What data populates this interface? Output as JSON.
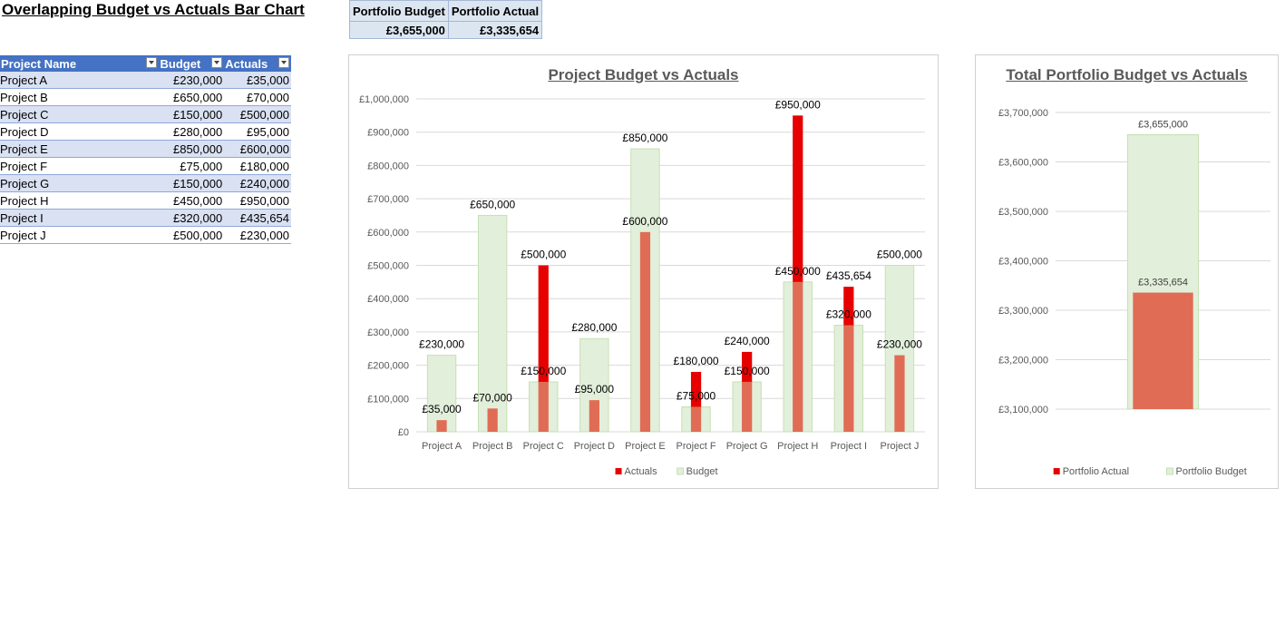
{
  "page_title": "Overlapping Budget vs Actuals Bar Chart",
  "summary": {
    "headers": [
      "Portfolio Budget",
      "Portfolio Actual"
    ],
    "values": [
      "£3,655,000",
      "£3,335,654"
    ]
  },
  "table": {
    "headers": [
      "Project Name",
      "Budget",
      "Actuals"
    ],
    "rows": [
      [
        "Project A",
        "£230,000",
        "£35,000"
      ],
      [
        "Project B",
        "£650,000",
        "£70,000"
      ],
      [
        "Project C",
        "£150,000",
        "£500,000"
      ],
      [
        "Project D",
        "£280,000",
        "£95,000"
      ],
      [
        "Project E",
        "£850,000",
        "£600,000"
      ],
      [
        "Project F",
        "£75,000",
        "£180,000"
      ],
      [
        "Project G",
        "£150,000",
        "£240,000"
      ],
      [
        "Project H",
        "£450,000",
        "£950,000"
      ],
      [
        "Project I",
        "£320,000",
        "£435,654"
      ],
      [
        "Project J",
        "£500,000",
        "£230,000"
      ]
    ]
  },
  "colors": {
    "budget_fill": "#e2efda",
    "budget_stroke": "#c6e0b4",
    "actual_under": "#e06c55",
    "actual_over": "#e60000",
    "header_blue": "#4472c4",
    "row_band": "#d9e1f2",
    "gridline": "#d9d9d9",
    "axis_text": "#595959"
  },
  "chart_data": [
    {
      "type": "bar",
      "title": "Project Budget vs Actuals",
      "categories": [
        "Project A",
        "Project B",
        "Project C",
        "Project D",
        "Project E",
        "Project F",
        "Project G",
        "Project H",
        "Project I",
        "Project J"
      ],
      "series": [
        {
          "name": "Actuals",
          "values": [
            35000,
            70000,
            500000,
            95000,
            600000,
            180000,
            240000,
            950000,
            435654,
            230000
          ]
        },
        {
          "name": "Budget",
          "values": [
            230000,
            650000,
            150000,
            280000,
            850000,
            75000,
            150000,
            450000,
            320000,
            500000
          ]
        }
      ],
      "actual_labels": [
        "£35,000",
        "£70,000",
        "£500,000",
        "£95,000",
        "£600,000",
        "£180,000",
        "£240,000",
        "£950,000",
        "£435,654",
        "£230,000"
      ],
      "budget_labels": [
        "£230,000",
        "£650,000",
        "£150,000",
        "£280,000",
        "£850,000",
        "£75,000",
        "£150,000",
        "£450,000",
        "£320,000",
        "£500,000"
      ],
      "ylim": [
        0,
        1000000
      ],
      "yticks": [
        0,
        100000,
        200000,
        300000,
        400000,
        500000,
        600000,
        700000,
        800000,
        900000,
        1000000
      ],
      "ytick_labels": [
        "£0",
        "£100,000",
        "£200,000",
        "£300,000",
        "£400,000",
        "£500,000",
        "£600,000",
        "£700,000",
        "£800,000",
        "£900,000",
        "£1,000,000"
      ],
      "legend": [
        "Actuals",
        "Budget"
      ],
      "legend_position": "bottom",
      "grid": true
    },
    {
      "type": "bar",
      "title": "Total Portfolio Budget vs Actuals",
      "categories": [
        ""
      ],
      "series": [
        {
          "name": "Portfolio Actual",
          "values": [
            3335654
          ]
        },
        {
          "name": "Portfolio Budget",
          "values": [
            3655000
          ]
        }
      ],
      "actual_labels": [
        "£3,335,654"
      ],
      "budget_labels": [
        "£3,655,000"
      ],
      "ylim": [
        3100000,
        3700000
      ],
      "yticks": [
        3100000,
        3200000,
        3300000,
        3400000,
        3500000,
        3600000,
        3700000
      ],
      "ytick_labels": [
        "£3,100,000",
        "£3,200,000",
        "£3,300,000",
        "£3,400,000",
        "£3,500,000",
        "£3,600,000",
        "£3,700,000"
      ],
      "legend": [
        "Portfolio Actual",
        "Portfolio Budget"
      ],
      "legend_position": "bottom",
      "grid": true
    }
  ]
}
